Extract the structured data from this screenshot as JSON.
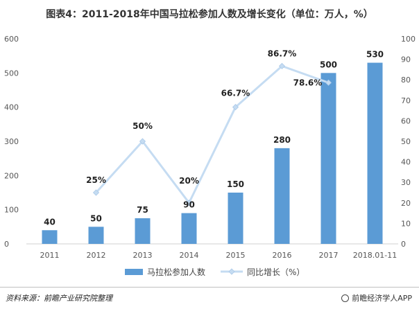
{
  "title": "图表4：2011-2018年中国马拉松参加人数及增长变化（单位：万人，%）",
  "source": "资料来源：前瞻产业研究院整理",
  "credit": "前瞻经济学人APP",
  "chart_data": {
    "type": "bar",
    "categories": [
      "2011",
      "2012",
      "2013",
      "2014",
      "2015",
      "2016",
      "2017",
      "2018.01-11"
    ],
    "series": [
      {
        "name": "马拉松参加人数",
        "type": "bar",
        "axis": "left",
        "values": [
          40,
          50,
          75,
          90,
          150,
          280,
          500,
          530
        ],
        "labels": [
          "40",
          "50",
          "75",
          "90",
          "150",
          "280",
          "500",
          "530"
        ],
        "color": "#5b9bd5"
      },
      {
        "name": "同比增长（%）",
        "type": "line",
        "axis": "right",
        "values": [
          null,
          25,
          50,
          20,
          66.7,
          86.7,
          78.6,
          null
        ],
        "labels": [
          null,
          "25%",
          "50%",
          "20%",
          "66.7%",
          "86.7%",
          "78.6%",
          null
        ],
        "color": "#c5dcf2"
      }
    ],
    "ylim": [
      0,
      600
    ],
    "y_ticks": [
      "0",
      "100",
      "200",
      "300",
      "400",
      "500",
      "600"
    ],
    "y2lim": [
      0,
      100
    ],
    "y2_ticks": [
      "0",
      "10",
      "20",
      "30",
      "40",
      "50",
      "60",
      "70",
      "80",
      "90",
      "100"
    ],
    "grid": false,
    "legend_position": "bottom"
  }
}
